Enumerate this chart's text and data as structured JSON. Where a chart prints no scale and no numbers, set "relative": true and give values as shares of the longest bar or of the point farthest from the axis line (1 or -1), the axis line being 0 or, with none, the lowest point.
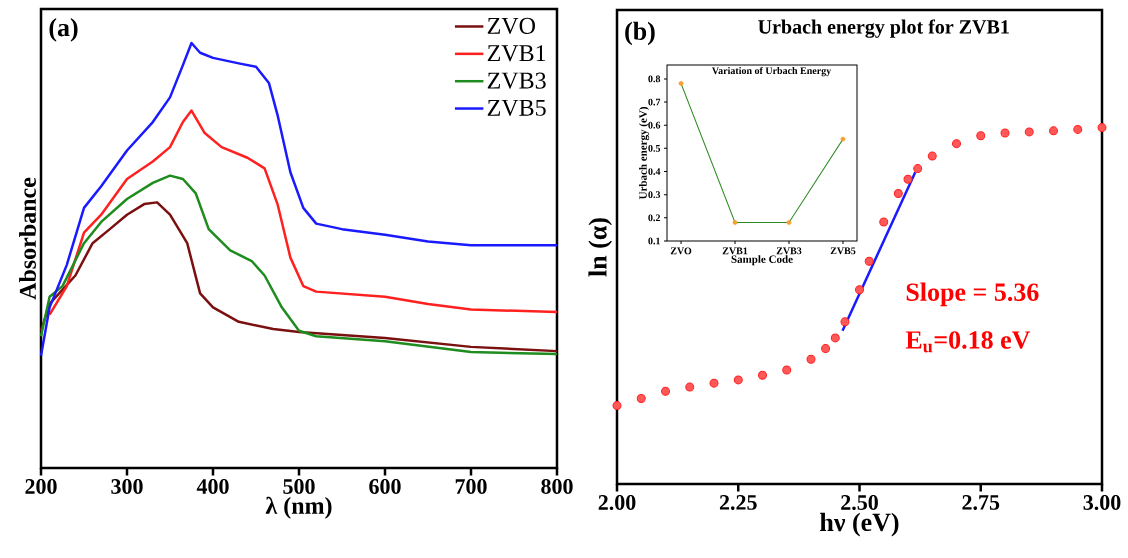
{
  "chart_data": [
    {
      "type": "line",
      "relative": true,
      "xlabel": "λ (nm)",
      "ylabel": "Absorbance",
      "xlim": [
        200,
        800
      ],
      "xticks": [
        200,
        300,
        400,
        500,
        600,
        700,
        800
      ],
      "legend": "top right",
      "marker": "none",
      "annotations": [
        "**(a)**"
      ],
      "series": [
        {
          "name": "ZVO",
          "color": "#7b1010",
          "x": [
            200,
            210,
            240,
            260,
            280,
            300,
            320,
            335,
            350,
            370,
            385,
            400,
            430,
            470,
            500,
            600,
            700,
            800
          ],
          "values": [
            0.323,
            0.386,
            0.453,
            0.529,
            0.562,
            0.596,
            0.621,
            0.625,
            0.596,
            0.529,
            0.411,
            0.378,
            0.344,
            0.327,
            0.32,
            0.306,
            0.285,
            0.275
          ]
        },
        {
          "name": "ZVB1",
          "color": "#ff2020",
          "x": [
            210,
            230,
            250,
            270,
            300,
            330,
            350,
            365,
            375,
            390,
            410,
            440,
            460,
            475,
            490,
            505,
            520,
            600,
            650,
            700,
            800
          ],
          "values": [
            0.361,
            0.428,
            0.554,
            0.596,
            0.68,
            0.721,
            0.755,
            0.814,
            0.841,
            0.789,
            0.755,
            0.73,
            0.705,
            0.621,
            0.495,
            0.428,
            0.415,
            0.403,
            0.386,
            0.373,
            0.367
          ]
        },
        {
          "name": "ZVB3",
          "color": "#1e8c1e",
          "x": [
            200,
            210,
            225,
            250,
            270,
            300,
            330,
            350,
            365,
            380,
            395,
            420,
            445,
            460,
            480,
            500,
            520,
            600,
            700,
            800
          ],
          "values": [
            0.31,
            0.403,
            0.428,
            0.529,
            0.579,
            0.633,
            0.671,
            0.688,
            0.68,
            0.646,
            0.562,
            0.512,
            0.487,
            0.453,
            0.378,
            0.323,
            0.31,
            0.298,
            0.273,
            0.268
          ]
        },
        {
          "name": "ZVB5",
          "color": "#1a1aff",
          "x": [
            200,
            210,
            230,
            250,
            270,
            300,
            330,
            350,
            365,
            375,
            385,
            400,
            430,
            450,
            465,
            475,
            490,
            505,
            520,
            550,
            600,
            650,
            700,
            800
          ],
          "values": [
            0.264,
            0.378,
            0.478,
            0.612,
            0.663,
            0.747,
            0.814,
            0.872,
            0.948,
            1.0,
            0.977,
            0.965,
            0.952,
            0.944,
            0.906,
            0.831,
            0.696,
            0.612,
            0.575,
            0.562,
            0.549,
            0.533,
            0.524,
            0.524
          ]
        }
      ]
    },
    {
      "type": "scatter",
      "relative": true,
      "title": "Urbach energy plot for ZVB1",
      "xlabel": "hν (eV)",
      "ylabel": "ln (α)",
      "xlim": [
        2,
        3
      ],
      "xticks": [
        {
          "value": 2,
          "label": "2.00"
        },
        {
          "value": 2.25,
          "label": "2.25"
        },
        {
          "value": 2.5,
          "label": "2.50"
        },
        {
          "value": 2.75,
          "label": "2.75"
        },
        {
          "value": 3,
          "label": "3.00"
        }
      ],
      "marker": "circle",
      "annotations": [
        "**(b)**",
        "Slope = 5.36",
        "E$_{u}$=0.18 eV"
      ],
      "series": [
        {
          "color": "#ff2020",
          "x": [
            2.0,
            2.05,
            2.1,
            2.15,
            2.2,
            2.25,
            2.3,
            2.35,
            2.4,
            2.43,
            2.45,
            2.47,
            2.5,
            2.52,
            2.55,
            2.58,
            2.6,
            2.62,
            2.65,
            2.7,
            2.75,
            2.8,
            2.85,
            2.9,
            2.95,
            3.0
          ],
          "values": [
            0.22,
            0.24,
            0.26,
            0.272,
            0.283,
            0.292,
            0.305,
            0.32,
            0.35,
            0.38,
            0.41,
            0.455,
            0.545,
            0.625,
            0.735,
            0.815,
            0.855,
            0.885,
            0.92,
            0.955,
            0.977,
            0.985,
            0.988,
            0.991,
            0.995,
            1.0
          ]
        },
        {
          "type": "line",
          "marker": "none",
          "color": "#1a1aff",
          "x": [
            2.465,
            2.615
          ],
          "values": [
            0.43,
            0.875
          ]
        }
      ]
    },
    {
      "type": "line",
      "title": "Variation of Urbach Energy",
      "xlabel": "Sample Code",
      "ylabel": "Urbach energy (eV)",
      "categories": [
        "ZVO",
        "ZVB1",
        "ZVB3",
        "ZVB5"
      ],
      "ylim": [
        0.1,
        0.86
      ],
      "yticks": [
        0.1,
        0.2,
        0.3,
        0.4,
        0.5,
        0.6,
        0.7,
        0.8
      ],
      "marker": "circle",
      "series": [
        {
          "color": "#2e8b22",
          "colors": [
            "#f5a030",
            "#f5a030",
            "#f5a030",
            "#f5a030"
          ],
          "values": [
            0.78,
            0.18,
            0.18,
            0.54
          ]
        }
      ]
    }
  ]
}
